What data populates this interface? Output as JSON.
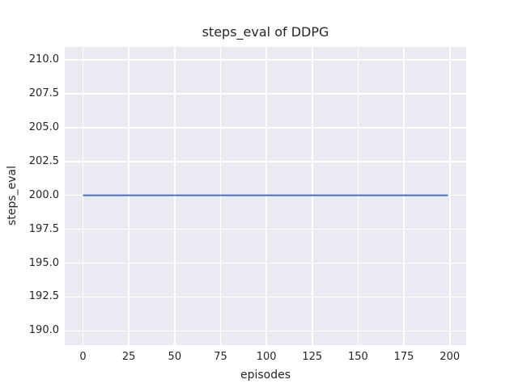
{
  "chart_data": {
    "type": "line",
    "title": "steps_eval of DDPG",
    "xlabel": "episodes",
    "ylabel": "steps_eval",
    "xlim": [
      -9.95,
      208.95
    ],
    "ylim": [
      188.95,
      210.95
    ],
    "x_ticks": [
      0,
      25,
      50,
      75,
      100,
      125,
      150,
      175,
      200
    ],
    "x_tick_labels": [
      "0",
      "25",
      "50",
      "75",
      "100",
      "125",
      "150",
      "175",
      "200"
    ],
    "y_ticks": [
      190.0,
      192.5,
      195.0,
      197.5,
      200.0,
      202.5,
      205.0,
      207.5,
      210.0
    ],
    "y_tick_labels": [
      "190.0",
      "192.5",
      "195.0",
      "197.5",
      "200.0",
      "202.5",
      "205.0",
      "207.5",
      "210.0"
    ],
    "grid": true,
    "legend": "none",
    "style": "seaborn-darkgrid",
    "series": [
      {
        "name": "steps_eval",
        "color": "#4C72B0",
        "line_width": 2,
        "x": [
          0,
          199
        ],
        "y": [
          200,
          200
        ],
        "description": "constant value 200 for every episode from 0 to 199"
      }
    ]
  },
  "colors": {
    "figure_background": "#FFFFFF",
    "axes_background": "#EAEAF2",
    "gridline": "#FFFFFF",
    "text": "#262626"
  }
}
